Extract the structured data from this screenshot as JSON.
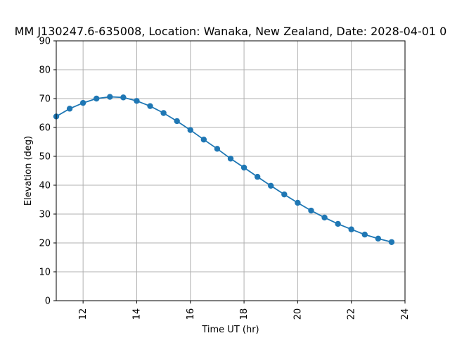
{
  "chart_data": {
    "type": "line",
    "title": "MM J130247.6-635008,  Location: Wanaka, New Zealand, Date: 2028-04-01 0",
    "xlabel": "Time UT (hr)",
    "ylabel": "Elevation (deg)",
    "xlim": [
      11,
      24
    ],
    "ylim": [
      0,
      90
    ],
    "xticks": [
      "12",
      "14",
      "16",
      "18",
      "20",
      "22",
      "24"
    ],
    "yticks": [
      "0",
      "10",
      "20",
      "30",
      "40",
      "50",
      "60",
      "70",
      "80",
      "90"
    ],
    "grid": true,
    "series": [
      {
        "color": "#1f77b4",
        "marker": "circle",
        "x": [
          11.0,
          11.5,
          12.0,
          12.5,
          13.0,
          13.5,
          14.0,
          14.5,
          15.0,
          15.5,
          16.0,
          16.5,
          17.0,
          17.5,
          18.0,
          18.5,
          19.0,
          19.5,
          20.0,
          20.5,
          21.0,
          21.5,
          22.0,
          22.5,
          23.0,
          23.5
        ],
        "y": [
          63.8,
          66.5,
          68.5,
          70.0,
          70.6,
          70.4,
          69.2,
          67.4,
          65.0,
          62.2,
          59.1,
          55.8,
          52.6,
          49.2,
          46.1,
          42.9,
          39.8,
          36.8,
          33.9,
          31.2,
          28.8,
          26.6,
          24.7,
          22.9,
          21.5,
          20.3
        ]
      }
    ]
  }
}
